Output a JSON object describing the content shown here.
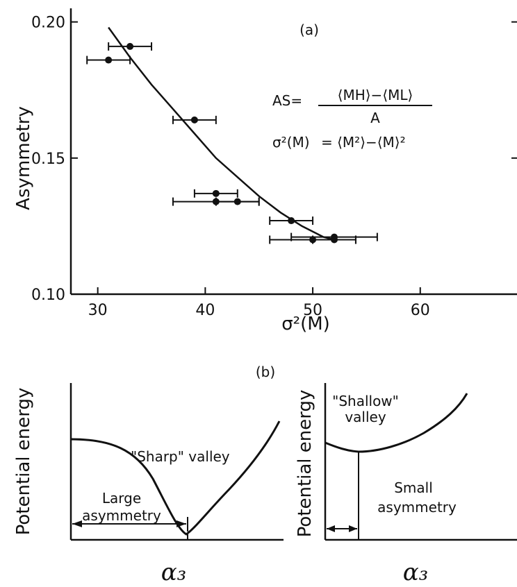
{
  "chart_data": [
    {
      "type": "scatter",
      "panel_label": "(a)",
      "ylabel": "Asymmetry",
      "xlabel": "σ²(M)",
      "xlim": [
        27.5,
        69
      ],
      "ylim": [
        0.1,
        0.205
      ],
      "xticks": [
        "30",
        "40",
        "50",
        "60"
      ],
      "xtick_values": [
        30,
        40,
        50,
        60
      ],
      "yticks": [
        "0.10",
        "0.15",
        "0.20"
      ],
      "ytick_values": [
        0.1,
        0.15,
        0.2
      ],
      "points": [
        {
          "x": 33,
          "y": 0.191,
          "xerr": 2
        },
        {
          "x": 31,
          "y": 0.186,
          "xerr": 2
        },
        {
          "x": 39,
          "y": 0.164,
          "xerr": 2
        },
        {
          "x": 41,
          "y": 0.137,
          "xerr": 2
        },
        {
          "x": 41,
          "y": 0.134,
          "xerr": 4
        },
        {
          "x": 43,
          "y": 0.134,
          "xerr": 2
        },
        {
          "x": 48,
          "y": 0.127,
          "xerr": 2
        },
        {
          "x": 50,
          "y": 0.12,
          "xerr": 4
        },
        {
          "x": 52,
          "y": 0.121,
          "xerr": 4
        },
        {
          "x": 52,
          "y": 0.12,
          "xerr": 2
        }
      ],
      "fit_curve": {
        "x": [
          31,
          33,
          35,
          37,
          39,
          41,
          43,
          45,
          47,
          49,
          51,
          52
        ],
        "y": [
          0.198,
          0.187,
          0.177,
          0.168,
          0.159,
          0.15,
          0.143,
          0.136,
          0.13,
          0.125,
          0.121,
          0.12
        ]
      },
      "equations": {
        "as_prefix": "AS=",
        "as_numerator": "⟨MH⟩−⟨ML⟩",
        "as_denominator": "A",
        "sigma_lhs": "σ²(M)",
        "sigma_rhs": "= ⟨M²⟩−⟨M⟩²"
      }
    },
    {
      "type": "diagram",
      "panel_label": "(b)",
      "left": {
        "ylabel": "Potential energy",
        "xlabel": "α₃",
        "valley_label": "\"Sharp\" valley",
        "asym_label_1": "Large",
        "asym_label_2": "asymmetry"
      },
      "right": {
        "ylabel": "Potential energy",
        "xlabel": "α₃",
        "valley_label_1": "\"Shallow\"",
        "valley_label_2": "valley",
        "asym_label_1": "Small",
        "asym_label_2": "asymmetry"
      }
    }
  ]
}
